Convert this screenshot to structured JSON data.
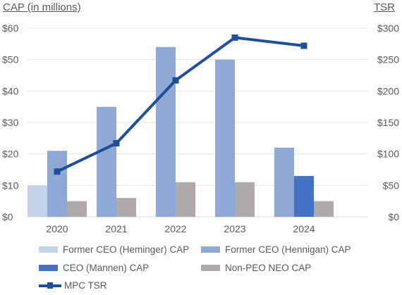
{
  "chart_data": {
    "type": "bar",
    "left_axis_title": "CAP (in millions)",
    "right_axis_title": "TSR",
    "categories": [
      "2020",
      "2021",
      "2022",
      "2023",
      "2024"
    ],
    "left_ticks": [
      "$0",
      "$10",
      "$20",
      "$30",
      "$40",
      "$50",
      "$60"
    ],
    "right_ticks": [
      "$0",
      "$50",
      "$100",
      "$150",
      "$200",
      "$250",
      "$300"
    ],
    "ylim_left": [
      0,
      60
    ],
    "ylim_right": [
      0,
      300
    ],
    "grid": true,
    "legend_position": "bottom",
    "series": [
      {
        "name": "Former CEO (Heminger) CAP",
        "type": "bar",
        "axis": "left",
        "color": "#c5d3e8",
        "values": [
          10,
          null,
          null,
          null,
          null
        ]
      },
      {
        "name": "Former CEO (Hennigan) CAP",
        "type": "bar",
        "axis": "left",
        "color": "#8ea9d6",
        "values": [
          21,
          35,
          54,
          50,
          22
        ]
      },
      {
        "name": "CEO (Mannen) CAP",
        "type": "bar",
        "axis": "left",
        "color": "#4472c4",
        "values": [
          null,
          null,
          null,
          null,
          13
        ]
      },
      {
        "name": "Non-PEO NEO CAP",
        "type": "bar",
        "axis": "left",
        "color": "#aeaaaa",
        "values": [
          5,
          6,
          11,
          11,
          5
        ]
      },
      {
        "name": "MPC TSR",
        "type": "line",
        "axis": "right",
        "color": "#1f4e9c",
        "values": [
          72,
          117,
          217,
          285,
          272
        ]
      }
    ]
  }
}
